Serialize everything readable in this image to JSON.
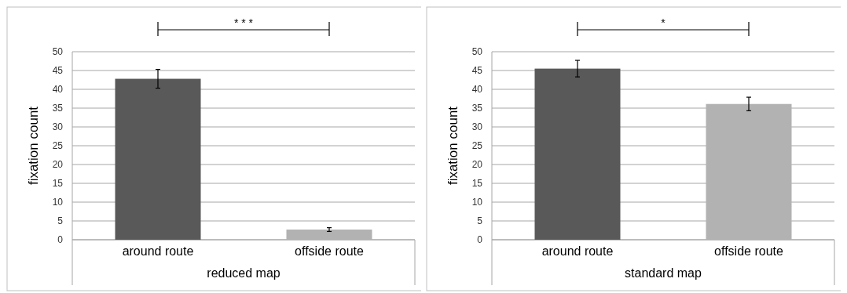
{
  "chart_data": [
    {
      "type": "bar",
      "categories": [
        "around route",
        "offside route"
      ],
      "values": [
        42.8,
        2.7
      ],
      "colors": [
        "#595959",
        "#b2b2b2"
      ],
      "errors": [
        2.5,
        0.5
      ],
      "xlabel": "reduced map",
      "ylabel": "fixation count",
      "ylim": [
        0,
        50
      ],
      "yticks": [
        0,
        5,
        10,
        15,
        20,
        25,
        30,
        35,
        40,
        45,
        50
      ],
      "grid": "y",
      "annotations": [
        "* * *"
      ]
    },
    {
      "type": "bar",
      "categories": [
        "around route",
        "offside route"
      ],
      "values": [
        45.5,
        36.1
      ],
      "colors": [
        "#595959",
        "#b2b2b2"
      ],
      "errors": [
        2.2,
        1.8
      ],
      "xlabel": "standard map",
      "ylabel": "fixation count",
      "ylim": [
        0,
        50
      ],
      "yticks": [
        0,
        5,
        10,
        15,
        20,
        25,
        30,
        35,
        40,
        45,
        50
      ],
      "grid": "y",
      "annotations": [
        "*"
      ]
    }
  ]
}
